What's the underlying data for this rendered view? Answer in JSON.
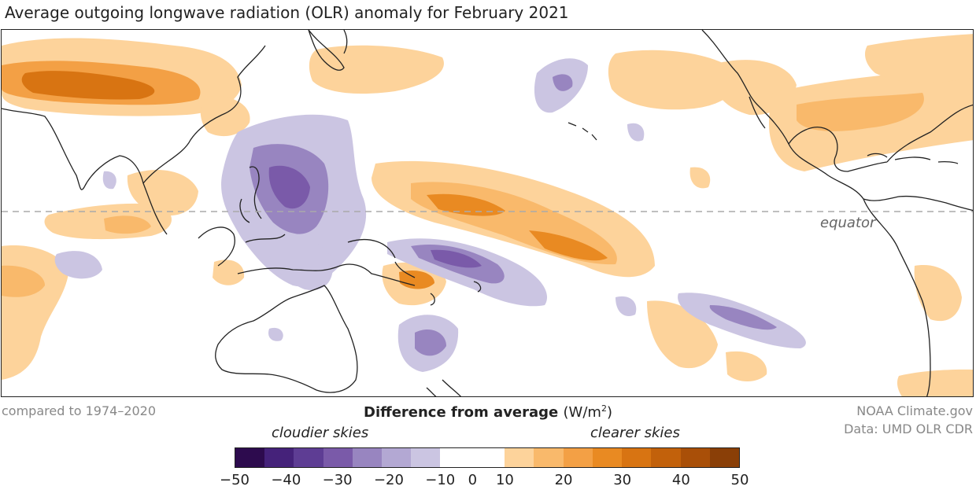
{
  "title": "Average outgoing longwave radiation (OLR) anomaly for February 2021",
  "map": {
    "equator_label": "equator",
    "baseline_note": "compared to 1974–2020"
  },
  "legend": {
    "title_main": "Difference from average",
    "title_unit_prefix": "(W/m",
    "title_unit_exp": "2",
    "title_unit_suffix": ")",
    "left_label": "cloudier skies",
    "right_label": "clearer skies",
    "ticks": [
      "−50",
      "−40",
      "−30",
      "−20",
      "−10",
      "0",
      "10",
      "20",
      "30",
      "40",
      "50"
    ],
    "colors_negative": [
      "#2d0b4e",
      "#45227a",
      "#5e3d94",
      "#7a5aa9",
      "#9885c0",
      "#b3a8d3",
      "#cbc5e2"
    ],
    "color_zero": "#ffffff",
    "colors_positive": [
      "#fdd39b",
      "#f9b96b",
      "#f3a045",
      "#e98a22",
      "#d87412",
      "#c2610b",
      "#a94f08",
      "#8a3f07"
    ]
  },
  "credits": {
    "line1": "NOAA Climate.gov",
    "line2": "Data: UMD OLR CDR"
  }
}
